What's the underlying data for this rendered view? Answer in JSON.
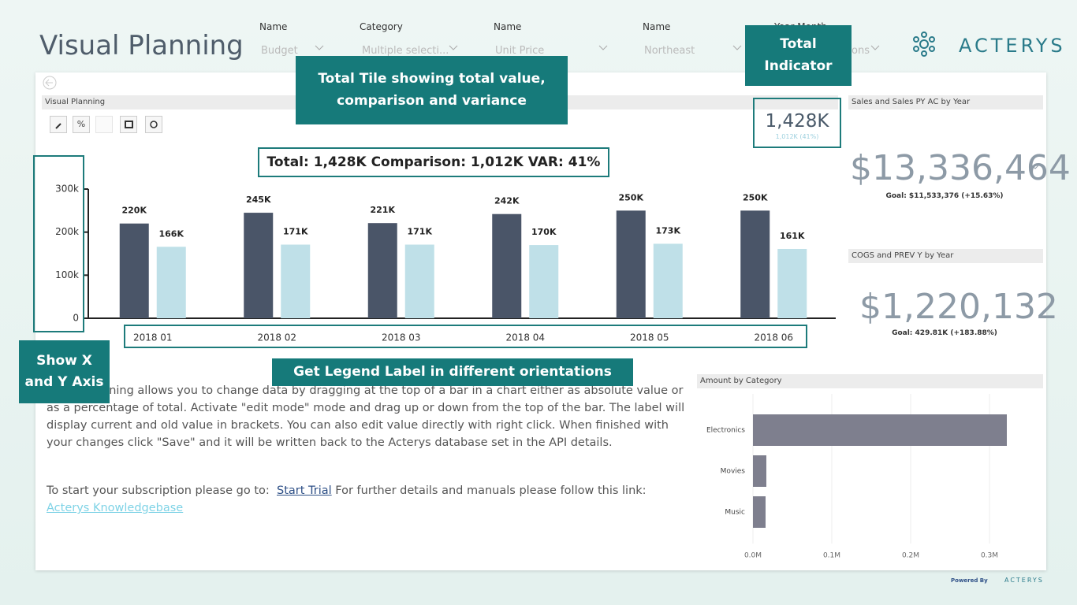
{
  "header": {
    "title": "Visual Planning",
    "logo": "ACTERYS",
    "filters": [
      {
        "label": "Name",
        "value": "Budget"
      },
      {
        "label": "Category",
        "value": "Multiple selecti..."
      },
      {
        "label": "Name",
        "value": "Unit Price"
      },
      {
        "label": "Name",
        "value": "Northeast"
      },
      {
        "label": "Year Month",
        "value": "ons"
      }
    ]
  },
  "callouts": [
    "Total Tile showing total value, comparison and variance",
    "Total Indicator",
    "Show X and Y Axis",
    "Get Legend Label in different orientations"
  ],
  "planning": {
    "panel_title": "Visual Planning",
    "toolbar_percent": "%",
    "total_line": "Total: 1,428K Comparison: 1,012K VAR: 41%",
    "indicator": {
      "value": "1,428K",
      "comparison": "1,012K (41%)"
    },
    "chart": {
      "type": "bar",
      "orientation": "vertical",
      "categories": [
        "2018 01",
        "2018 02",
        "2018 03",
        "2018 04",
        "2018 05",
        "2018 06"
      ],
      "series": [
        {
          "color": "#4a5568",
          "values": [
            220000,
            245000,
            221000,
            242000,
            250000,
            250000
          ],
          "value_labels": [
            "220K",
            "245K",
            "221K",
            "242K",
            "250K",
            "250K"
          ]
        },
        {
          "color": "#bfe0e8",
          "values": [
            166000,
            171000,
            171000,
            170000,
            173000,
            161000
          ],
          "value_labels": [
            "166K",
            "171K",
            "171K",
            "170K",
            "173K",
            "161K"
          ]
        }
      ],
      "ylim": [
        0,
        300000
      ],
      "yticks": [
        0,
        {
          "value": 100000,
          "label": "100k"
        },
        {
          "value": 200000,
          "label": "200k"
        },
        {
          "value": 300000,
          "label": "300k"
        }
      ]
    },
    "description": "Visual planning allows you to change data by dragging at the top of a bar in a chart either as absolute value or as a percentage of total. Activate \"edit mode\" mode and drag up or down from the top of the bar. The label will display current and old value in brackets. You can also edit value directly with right click. When finished with your changes click \"Save\" and it will be written back to the Acterys database set in the API details.",
    "trial": {
      "prefix": "To start your subscription please go to:",
      "link": "Start Trial",
      "middle": "For further details and manuals please follow this link:",
      "link2": "Acterys Knowledgebase"
    }
  },
  "kpis": [
    {
      "title": "Sales and Sales PY AC by Year",
      "value": "$13,336,464",
      "goal": "Goal: $11,533,376 (+15.63%)"
    },
    {
      "title": "COGS and PREV Y by Year",
      "value": "$1,220,132",
      "goal": "Goal: 429.81K (+183.88%)"
    }
  ],
  "category_chart": {
    "type": "bar",
    "orientation": "horizontal",
    "title": "Amount by Category",
    "categories": [
      "Electronics",
      "Movies",
      "Music"
    ],
    "values": [
      322000,
      17000,
      16000
    ],
    "color": "#7e7f8e",
    "xlim": [
      0,
      340000
    ],
    "xticks": [
      {
        "value": 0,
        "label": "0.0M"
      },
      {
        "value": 100000,
        "label": "0.1M"
      },
      {
        "value": 200000,
        "label": "0.2M"
      },
      {
        "value": 300000,
        "label": "0.3M"
      }
    ],
    "grid": true
  },
  "footer": {
    "powered_by": "Powered By",
    "brand": "ACTERYS"
  }
}
